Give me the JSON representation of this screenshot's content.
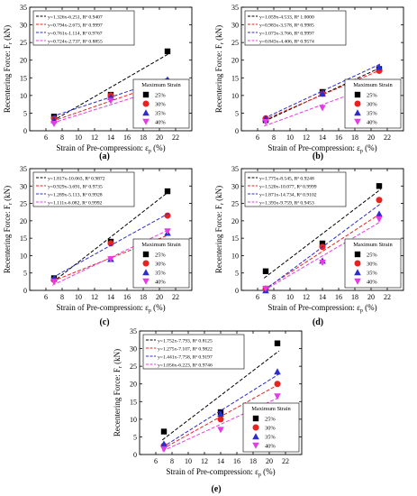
{
  "legend_title": "Maximum Strain",
  "strain_labels": [
    "25%",
    "30%",
    "35%",
    "40%"
  ],
  "series_colors": [
    "#000000",
    "#e8231f",
    "#2c2cd0",
    "#e43ce4"
  ],
  "marker_shapes": [
    "square",
    "circle",
    "triangle-up",
    "triangle-down"
  ],
  "ylabel_main": "Recentering Force: F",
  "ylabel_sub": "r",
  "ylabel_unit": " (kN)",
  "xlabel_main": "Strain of Pre-compression: ε",
  "xlabel_sub": "p",
  "xlabel_unit": " (%)",
  "chart_data": [
    {
      "type": "scatter",
      "panel_label": "(a)",
      "x": [
        7,
        14,
        21
      ],
      "xlim": [
        4,
        24
      ],
      "xticks": [
        6,
        8,
        10,
        12,
        14,
        16,
        18,
        20,
        22
      ],
      "ylim": [
        0,
        35
      ],
      "yticks": [
        0,
        5,
        10,
        15,
        20,
        25,
        30,
        35
      ],
      "legend_position": "bottom-right",
      "series": [
        {
          "name": "25%",
          "values": [
            4.0,
            10.2,
            22.5
          ],
          "fit": "y=1.326x-6.251, R² 0.9407",
          "slope": 1.326,
          "intercept": -6.251
        },
        {
          "name": "30%",
          "values": [
            3.5,
            10.0,
            14.0
          ],
          "fit": "y=0.794x-2.673, R² 0.9997",
          "slope": 0.794,
          "intercept": -2.673
        },
        {
          "name": "35%",
          "values": [
            3.0,
            9.5,
            14.5
          ],
          "fit": "y=0.761x-1.114, R² 0.9767",
          "slope": 0.761,
          "intercept": -1.114
        },
        {
          "name": "40%",
          "values": [
            2.0,
            8.5,
            12.5
          ],
          "fit": "y=0.724x-2.737, R² 0.8855",
          "slope": 0.724,
          "intercept": -2.737
        }
      ]
    },
    {
      "type": "scatter",
      "panel_label": "(b)",
      "x": [
        7,
        14,
        21
      ],
      "xlim": [
        4,
        24
      ],
      "xticks": [
        6,
        8,
        10,
        12,
        14,
        16,
        18,
        20,
        22
      ],
      "ylim": [
        0,
        35
      ],
      "yticks": [
        0,
        5,
        10,
        15,
        20,
        25,
        30,
        35
      ],
      "legend_position": "bottom-right",
      "series": [
        {
          "name": "25%",
          "values": [
            3.0,
            11.0,
            17.5
          ],
          "fit": "y=1.059x-4.533, R² 1.0000",
          "slope": 1.059,
          "intercept": -4.533
        },
        {
          "name": "30%",
          "values": [
            3.5,
            10.5,
            17.0
          ],
          "fit": "y=0.983x-3.578, R² 0.9985",
          "slope": 0.983,
          "intercept": -3.578
        },
        {
          "name": "35%",
          "values": [
            3.5,
            10.5,
            18.0
          ],
          "fit": "y=1.073x-3.766, R² 0.9997",
          "slope": 1.073,
          "intercept": -3.766
        },
        {
          "name": "40%",
          "values": [
            2.5,
            6.5,
            13.5
          ],
          "fit": "y=0.843x-4.406, R² 0.9574",
          "slope": 0.843,
          "intercept": -4.406
        }
      ]
    },
    {
      "type": "scatter",
      "panel_label": "(c)",
      "x": [
        7,
        14,
        21
      ],
      "xlim": [
        4,
        24
      ],
      "xticks": [
        6,
        8,
        10,
        12,
        14,
        16,
        18,
        20,
        22
      ],
      "ylim": [
        0,
        35
      ],
      "yticks": [
        0,
        5,
        10,
        15,
        20,
        25,
        30,
        35
      ],
      "legend_position": "bottom-right",
      "series": [
        {
          "name": "25%",
          "values": [
            3.5,
            14.0,
            28.5
          ],
          "fit": "y=1.817x-10.063, R² 0.9872",
          "slope": 1.817,
          "intercept": -10.063
        },
        {
          "name": "30%",
          "values": [
            3.0,
            13.5,
            21.5
          ],
          "fit": "y=0.929x-3.691, R² 0.9735",
          "slope": 0.929,
          "intercept": -3.691
        },
        {
          "name": "35%",
          "values": [
            3.5,
            9.0,
            16.5
          ],
          "fit": "y=1.289x-5.113, R² 0.9928",
          "slope": 1.289,
          "intercept": -5.113
        },
        {
          "name": "40%",
          "values": [
            2.5,
            9.0,
            17.0
          ],
          "fit": "y=1.111x-6.082, R² 0.9992",
          "slope": 1.111,
          "intercept": -6.082
        }
      ]
    },
    {
      "type": "scatter",
      "panel_label": "(d)",
      "x": [
        7,
        14,
        21
      ],
      "xlim": [
        4,
        24
      ],
      "xticks": [
        6,
        8,
        10,
        12,
        14,
        16,
        18,
        20,
        22
      ],
      "ylim": [
        0,
        35
      ],
      "yticks": [
        0,
        5,
        10,
        15,
        20,
        25,
        30,
        35
      ],
      "legend_position": "bottom-right",
      "series": [
        {
          "name": "25%",
          "values": [
            5.5,
            13.5,
            30.0
          ],
          "fit": "y=1.775x-8.545, R² 0.9248",
          "slope": 1.775,
          "intercept": -8.545
        },
        {
          "name": "30%",
          "values": [
            0.5,
            12.5,
            26.0
          ],
          "fit": "y=1.520x-10.077, R² 0.9999",
          "slope": 1.52,
          "intercept": -10.077
        },
        {
          "name": "35%",
          "values": [
            0.0,
            8.5,
            22.0
          ],
          "fit": "y=1.871x-14.734, R² 0.9102",
          "slope": 1.871,
          "intercept": -14.734
        },
        {
          "name": "40%",
          "values": [
            0.5,
            8.0,
            20.5
          ],
          "fit": "y=1.393x-9.759, R² 0.9453",
          "slope": 1.393,
          "intercept": -9.759
        }
      ]
    },
    {
      "type": "scatter",
      "panel_label": "(e)",
      "x": [
        7,
        14,
        21
      ],
      "xlim": [
        4,
        24
      ],
      "xticks": [
        6,
        8,
        10,
        12,
        14,
        16,
        18,
        20,
        22
      ],
      "ylim": [
        0,
        35
      ],
      "yticks": [
        0,
        5,
        10,
        15,
        20,
        25,
        30,
        35
      ],
      "legend_position": "bottom-right",
      "series": [
        {
          "name": "25%",
          "values": [
            6.5,
            12.0,
            31.5
          ],
          "fit": "y=1.752x-7.793, R² 0.8125",
          "slope": 1.752,
          "intercept": -7.793
        },
        {
          "name": "30%",
          "values": [
            2.5,
            10.0,
            20.0
          ],
          "fit": "y=1.275x-7.107, R² 0.9822",
          "slope": 1.275,
          "intercept": -7.107
        },
        {
          "name": "35%",
          "values": [
            3.0,
            11.5,
            23.5
          ],
          "fit": "y=1.441x-7.758, R² 0.9197",
          "slope": 1.441,
          "intercept": -7.758
        },
        {
          "name": "40%",
          "values": [
            1.5,
            7.0,
            16.5
          ],
          "fit": "y=1.056x-6.223, R² 0.9746",
          "slope": 1.056,
          "intercept": -6.223
        }
      ]
    }
  ]
}
